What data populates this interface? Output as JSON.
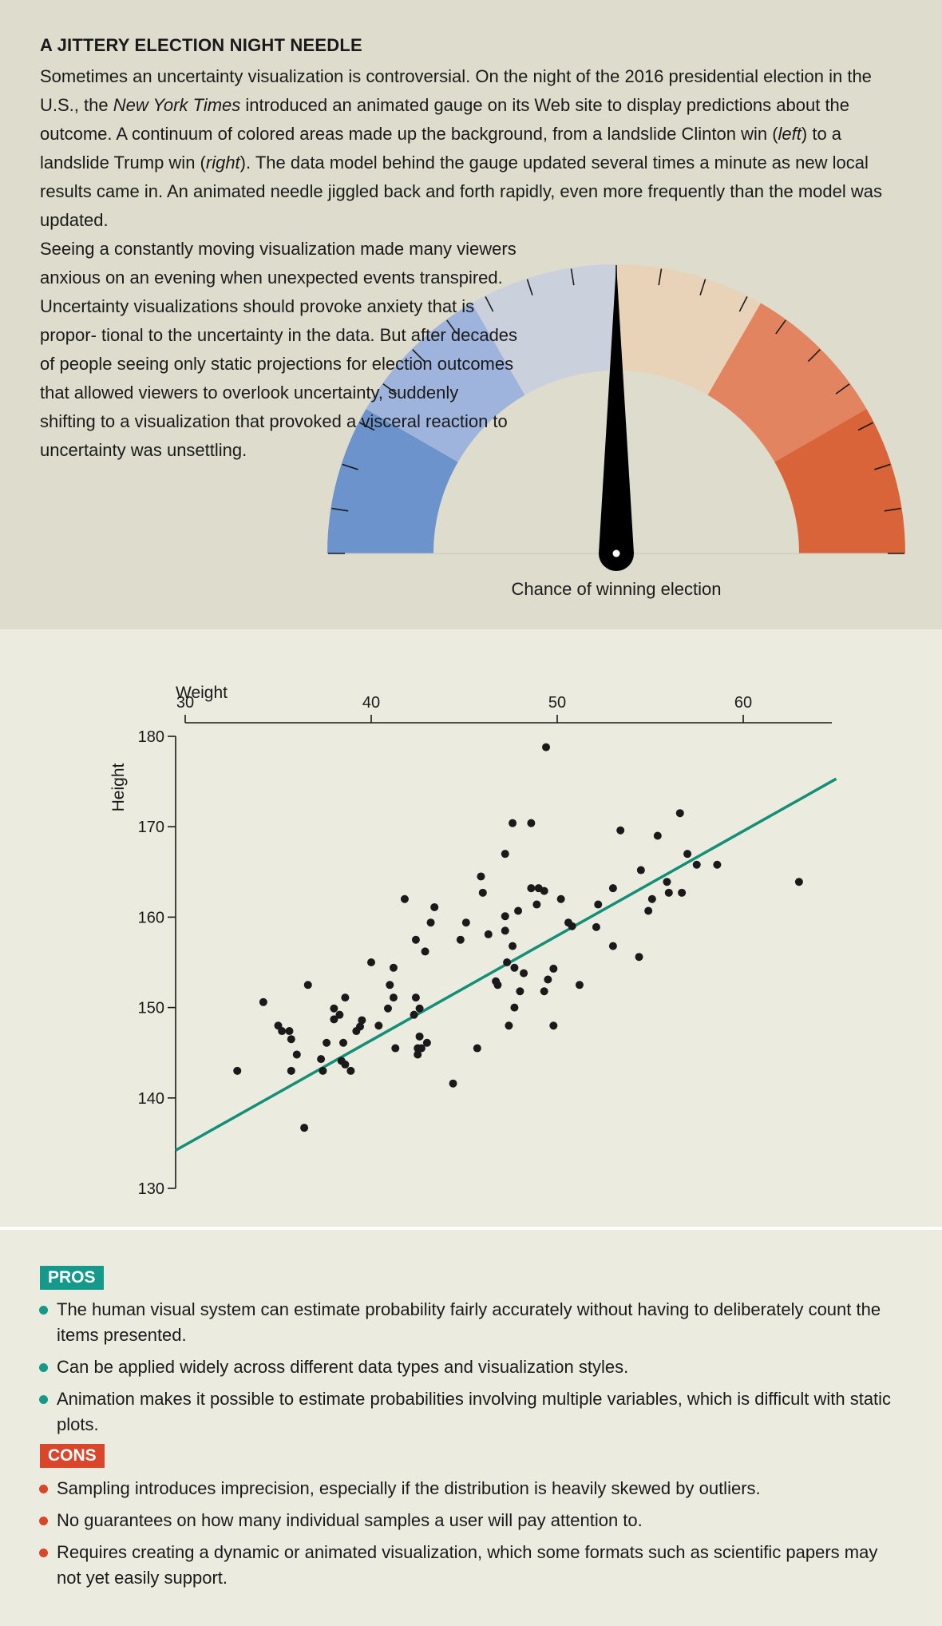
{
  "header": {
    "title": "A JITTERY ELECTION NIGHT NEEDLE",
    "intro_segments": [
      "Sometimes an uncertainty visualization is controversial. On the night of the 2016 presidential election in the U.S., the ",
      "New York Times",
      " introduced an animated gauge on its Web site to display predictions about the outcome. A continuum of colored areas made up the background, from a landslide Clinton win (",
      "left",
      ") to a landslide Trump win (",
      "right",
      "). The data model behind the gauge updated several times a minute as new local results came in. An animated needle jiggled back and forth rapidly, even more frequently than the model was updated."
    ],
    "side_text": "Seeing a constantly moving visualization made many viewers anxious on an evening when unexpected events transpired. Uncertainty visualizations should provoke anxiety that is propor- tional to the uncertainty in the data. But after decades of people seeing only static projections for election outcomes that allowed viewers to overlook uncertainty, suddenly shifting to a visualization that provoked a visceral reaction to uncertainty was unsettling."
  },
  "gauge": {
    "caption": "Chance of winning election",
    "band_colors": [
      "#6c93cb",
      "#9fb4dc",
      "#cbd0dd",
      "#e8d2b8",
      "#e1845f",
      "#da643a"
    ],
    "needle_color": "#000000",
    "needle_value": 0.5,
    "tick_count": 20
  },
  "chart_data": {
    "type": "scatter",
    "xlabel": "Weight",
    "ylabel": "Height",
    "xlim": [
      30,
      65
    ],
    "ylim": [
      130,
      180
    ],
    "x_ticks": [
      "30",
      "40",
      "50",
      "60"
    ],
    "y_ticks": [
      "130",
      "140",
      "150",
      "160",
      "170",
      "180"
    ],
    "point_color": "#1a1a1a",
    "regression": {
      "color": "#138f78",
      "x": [
        30,
        65
      ],
      "y": [
        134.8,
        175.3
      ]
    },
    "points": [
      [
        32.8,
        143
      ],
      [
        34.2,
        150.6
      ],
      [
        35.0,
        148
      ],
      [
        35.2,
        147.4
      ],
      [
        35.6,
        147.4
      ],
      [
        35.7,
        146.5
      ],
      [
        35.7,
        143
      ],
      [
        36.0,
        144.8
      ],
      [
        36.4,
        136.7
      ],
      [
        36.6,
        152.5
      ],
      [
        37.3,
        144.3
      ],
      [
        37.4,
        143
      ],
      [
        37.6,
        146.1
      ],
      [
        38.0,
        148.7
      ],
      [
        38.0,
        149.9
      ],
      [
        38.3,
        149.2
      ],
      [
        38.4,
        144.1
      ],
      [
        38.5,
        146.1
      ],
      [
        38.6,
        143.7
      ],
      [
        38.6,
        151.1
      ],
      [
        38.9,
        143
      ],
      [
        39.2,
        147.4
      ],
      [
        39.4,
        147.9
      ],
      [
        39.5,
        148.6
      ],
      [
        40.0,
        155
      ],
      [
        40.4,
        148
      ],
      [
        40.9,
        149.9
      ],
      [
        41.0,
        152.5
      ],
      [
        41.2,
        154.4
      ],
      [
        41.2,
        151.1
      ],
      [
        41.3,
        145.5
      ],
      [
        41.8,
        162
      ],
      [
        42.3,
        149.2
      ],
      [
        42.4,
        151.1
      ],
      [
        42.4,
        157.5
      ],
      [
        42.5,
        144.8
      ],
      [
        42.5,
        145.5
      ],
      [
        42.6,
        146.8
      ],
      [
        42.6,
        149.9
      ],
      [
        42.7,
        145.5
      ],
      [
        42.9,
        156.2
      ],
      [
        43.0,
        146.1
      ],
      [
        43.2,
        159.4
      ],
      [
        43.4,
        161.1
      ],
      [
        44.4,
        141.6
      ],
      [
        44.8,
        157.5
      ],
      [
        45.1,
        159.4
      ],
      [
        45.7,
        145.5
      ],
      [
        45.9,
        164.5
      ],
      [
        46.0,
        162.7
      ],
      [
        46.3,
        158.1
      ],
      [
        46.7,
        152.9
      ],
      [
        46.8,
        152.5
      ],
      [
        47.2,
        167
      ],
      [
        47.2,
        160.1
      ],
      [
        47.2,
        158.5
      ],
      [
        47.3,
        155
      ],
      [
        47.4,
        148
      ],
      [
        47.6,
        170.4
      ],
      [
        47.6,
        156.8
      ],
      [
        47.7,
        154.4
      ],
      [
        47.7,
        150
      ],
      [
        47.9,
        160.7
      ],
      [
        48.0,
        151.8
      ],
      [
        48.2,
        153.8
      ],
      [
        48.6,
        163.2
      ],
      [
        48.6,
        170.4
      ],
      [
        48.9,
        161.4
      ],
      [
        49.0,
        163.2
      ],
      [
        49.3,
        162.9
      ],
      [
        49.3,
        151.8
      ],
      [
        49.4,
        178.8
      ],
      [
        49.5,
        153.1
      ],
      [
        49.8,
        154.3
      ],
      [
        49.8,
        148
      ],
      [
        50.2,
        162
      ],
      [
        50.6,
        159.4
      ],
      [
        50.8,
        159
      ],
      [
        51.2,
        152.5
      ],
      [
        52.1,
        158.9
      ],
      [
        52.2,
        161.4
      ],
      [
        53.0,
        163.2
      ],
      [
        53.0,
        156.8
      ],
      [
        53.4,
        169.6
      ],
      [
        54.4,
        155.6
      ],
      [
        54.5,
        165.2
      ],
      [
        54.9,
        160.7
      ],
      [
        55.1,
        162
      ],
      [
        55.4,
        169
      ],
      [
        55.9,
        163.9
      ],
      [
        56.0,
        162.7
      ],
      [
        56.6,
        171.5
      ],
      [
        56.7,
        162.7
      ],
      [
        57.0,
        167
      ],
      [
        57.5,
        165.8
      ],
      [
        58.6,
        165.8
      ],
      [
        63.0,
        163.9
      ]
    ]
  },
  "pros": {
    "label": "PROS",
    "items": [
      "The human visual system can estimate probability fairly accurately without having to deliberately count the items presented.",
      "Can be applied widely across different data types and visualization styles.",
      "Animation makes it possible to estimate probabilities involving multiple variables, which is difficult with static plots."
    ]
  },
  "cons": {
    "label": "CONS",
    "items": [
      "Sampling introduces imprecision, especially if the distribution is heavily skewed by outliers.",
      "No guarantees on how many individual samples a user will pay attention to.",
      "Requires creating a dynamic or animated visualization, which some formats such as scientific papers may not yet easily support."
    ]
  }
}
